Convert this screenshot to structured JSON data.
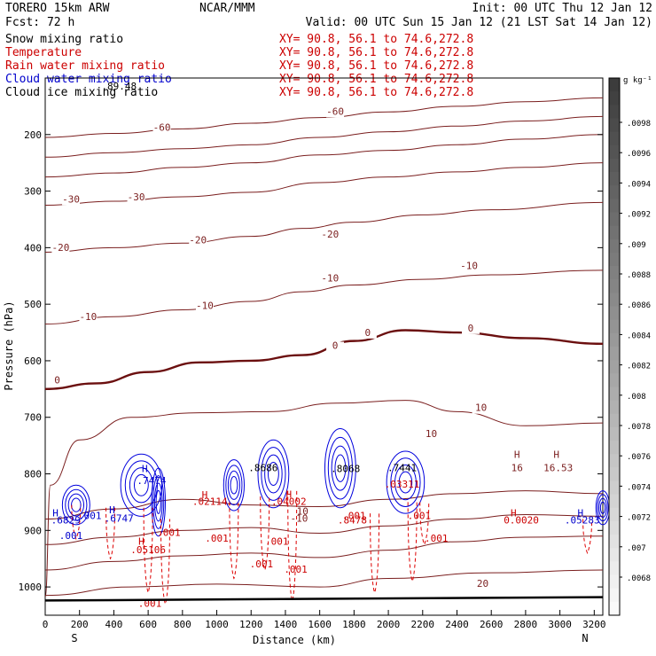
{
  "header": {
    "model": "TORERO  15km ARW",
    "center": "NCAR/MMM",
    "init": "Init: 00 UTC Thu 12 Jan 12",
    "fcst": "Fcst:   72 h",
    "valid": "Valid: 00 UTC Sun 15 Jan 12 (21 LST Sat 14 Jan 12)"
  },
  "fields": [
    {
      "name": "Snow mixing ratio",
      "xy": "XY=  90.8, 56.1 to  74.6,272.8",
      "color": "#000000"
    },
    {
      "name": "Temperature",
      "xy": "XY=  90.8, 56.1 to  74.6,272.8",
      "color": "#cc0000"
    },
    {
      "name": "Rain water mixing ratio",
      "xy": "XY=  90.8, 56.1 to  74.6,272.8",
      "color": "#cc0000"
    },
    {
      "name": "Cloud water mixing ratio",
      "xy": "XY=  90.8, 56.1 to  74.6,272.8",
      "color": "#0000cc"
    },
    {
      "name": "Cloud ice mixing ratio",
      "xy": "XY=  90.8, 56.1 to  74.6,272.8",
      "color": "#000000"
    }
  ],
  "chart_data": {
    "type": "contour",
    "xlabel": "Distance (km)",
    "ylabel": "Pressure (hPa)",
    "xlim": [
      0,
      3250
    ],
    "ylim": [
      1050,
      100
    ],
    "x_ticks": [
      0,
      200,
      400,
      600,
      800,
      1000,
      1200,
      1400,
      1600,
      1800,
      2000,
      2200,
      2400,
      2600,
      2800,
      3000,
      3200
    ],
    "y_ticks": [
      200,
      300,
      400,
      500,
      600,
      700,
      800,
      900,
      1000
    ],
    "x_end_labels": {
      "left": "S",
      "right": "N"
    },
    "temperature_contours": [
      {
        "level": -60,
        "label": "-60",
        "points": [
          [
            0,
            205
          ],
          [
            400,
            198
          ],
          [
            800,
            190
          ],
          [
            1200,
            180
          ],
          [
            1600,
            170
          ],
          [
            2000,
            160
          ],
          [
            2400,
            150
          ],
          [
            2800,
            142
          ],
          [
            3250,
            135
          ]
        ],
        "label_positions": [
          [
            680,
            193
          ],
          [
            1690,
            165
          ]
        ]
      },
      {
        "level": -50,
        "label": "",
        "points": [
          [
            0,
            240
          ],
          [
            400,
            232
          ],
          [
            800,
            225
          ],
          [
            1200,
            218
          ],
          [
            1600,
            205
          ],
          [
            2000,
            195
          ],
          [
            2400,
            185
          ],
          [
            2800,
            176
          ],
          [
            3250,
            168
          ]
        ],
        "label_positions": []
      },
      {
        "level": -40,
        "label": "",
        "points": [
          [
            0,
            275
          ],
          [
            400,
            268
          ],
          [
            800,
            258
          ],
          [
            1200,
            250
          ],
          [
            1600,
            236
          ],
          [
            2000,
            228
          ],
          [
            2400,
            218
          ],
          [
            2800,
            208
          ],
          [
            3250,
            200
          ]
        ],
        "label_positions": []
      },
      {
        "level": -30,
        "label": "-30",
        "points": [
          [
            0,
            325
          ],
          [
            400,
            318
          ],
          [
            800,
            310
          ],
          [
            1200,
            302
          ],
          [
            1600,
            285
          ],
          [
            2000,
            275
          ],
          [
            2400,
            266
          ],
          [
            2800,
            258
          ],
          [
            3250,
            250
          ]
        ],
        "label_positions": [
          [
            150,
            320
          ],
          [
            530,
            316
          ]
        ]
      },
      {
        "level": -20,
        "label": "-20",
        "points": [
          [
            0,
            408
          ],
          [
            400,
            400
          ],
          [
            800,
            392
          ],
          [
            1200,
            380
          ],
          [
            1500,
            366
          ],
          [
            1800,
            355
          ],
          [
            2200,
            342
          ],
          [
            2600,
            333
          ],
          [
            3250,
            320
          ]
        ],
        "label_positions": [
          [
            90,
            406
          ],
          [
            890,
            392
          ],
          [
            1660,
            382
          ]
        ]
      },
      {
        "level": -10,
        "label": "-10",
        "points": [
          [
            0,
            535
          ],
          [
            400,
            522
          ],
          [
            800,
            510
          ],
          [
            1200,
            495
          ],
          [
            1500,
            478
          ],
          [
            1800,
            466
          ],
          [
            2200,
            456
          ],
          [
            2600,
            448
          ],
          [
            3250,
            440
          ]
        ],
        "label_positions": [
          [
            250,
            528
          ],
          [
            930,
            508
          ],
          [
            1660,
            460
          ],
          [
            2470,
            438
          ]
        ]
      },
      {
        "level": 0,
        "label": "0",
        "points": [
          [
            0,
            650
          ],
          [
            300,
            640
          ],
          [
            600,
            620
          ],
          [
            900,
            603
          ],
          [
            1200,
            600
          ],
          [
            1500,
            590
          ],
          [
            1800,
            565
          ],
          [
            2100,
            546
          ],
          [
            2400,
            550
          ],
          [
            2800,
            560
          ],
          [
            3250,
            570
          ]
        ],
        "label_positions": [
          [
            70,
            640
          ],
          [
            1690,
            579
          ],
          [
            1880,
            556
          ],
          [
            2480,
            548
          ]
        ]
      },
      {
        "level": 10,
        "label": "10",
        "points": [
          [
            0,
            1018
          ],
          [
            30,
            820
          ],
          [
            200,
            740
          ],
          [
            500,
            700
          ],
          [
            900,
            692
          ],
          [
            1300,
            690
          ],
          [
            1700,
            675
          ],
          [
            2100,
            670
          ],
          [
            2400,
            690
          ],
          [
            2800,
            715
          ],
          [
            3250,
            710
          ]
        ],
        "label_positions": [
          [
            2540,
            689
          ],
          [
            1500,
            872
          ]
        ]
      },
      {
        "level": 14,
        "label": "",
        "points": [
          [
            0,
            880
          ],
          [
            400,
            862
          ],
          [
            800,
            845
          ],
          [
            1200,
            855
          ],
          [
            1600,
            858
          ],
          [
            2000,
            845
          ],
          [
            2400,
            835
          ],
          [
            2800,
            830
          ],
          [
            3250,
            835
          ]
        ],
        "label_positions": []
      },
      {
        "level": 16,
        "label": "",
        "points": [
          [
            0,
            925
          ],
          [
            400,
            912
          ],
          [
            800,
            900
          ],
          [
            1200,
            895
          ],
          [
            1600,
            905
          ],
          [
            2000,
            892
          ],
          [
            2400,
            880
          ],
          [
            2800,
            872
          ],
          [
            3250,
            875
          ]
        ],
        "label_positions": []
      },
      {
        "level": 18,
        "label": "",
        "points": [
          [
            0,
            970
          ],
          [
            400,
            955
          ],
          [
            800,
            945
          ],
          [
            1200,
            940
          ],
          [
            1600,
            948
          ],
          [
            2000,
            935
          ],
          [
            2400,
            920
          ],
          [
            2800,
            912
          ],
          [
            3250,
            910
          ]
        ],
        "label_positions": []
      },
      {
        "level": 20,
        "label": "20",
        "points": [
          [
            0,
            1015
          ],
          [
            500,
            1000
          ],
          [
            1000,
            995
          ],
          [
            1600,
            1000
          ],
          [
            2000,
            985
          ],
          [
            2600,
            975
          ],
          [
            3250,
            970
          ]
        ],
        "label_positions": [
          [
            2550,
            1000
          ]
        ]
      }
    ],
    "cloud_water_blobs": [
      {
        "x": 180,
        "p": 855,
        "rx": 80,
        "rp": 35
      },
      {
        "x": 560,
        "p": 820,
        "rx": 120,
        "rp": 55
      },
      {
        "x": 660,
        "p": 850,
        "rx": 40,
        "rp": 60
      },
      {
        "x": 1100,
        "p": 820,
        "rx": 60,
        "rp": 45
      },
      {
        "x": 1330,
        "p": 800,
        "rx": 90,
        "rp": 60
      },
      {
        "x": 1720,
        "p": 790,
        "rx": 90,
        "rp": 70
      },
      {
        "x": 2100,
        "p": 815,
        "rx": 110,
        "rp": 55
      },
      {
        "x": 3250,
        "p": 860,
        "rx": 40,
        "rp": 30
      }
    ],
    "rain_water_contours": [
      {
        "x": 180,
        "p_top": 855,
        "p_bottom": 915
      },
      {
        "x": 380,
        "p_top": 860,
        "p_bottom": 950
      },
      {
        "x": 600,
        "p_top": 860,
        "p_bottom": 1010
      },
      {
        "x": 700,
        "p_top": 880,
        "p_bottom": 1030
      },
      {
        "x": 1100,
        "p_top": 850,
        "p_bottom": 985
      },
      {
        "x": 1280,
        "p_top": 840,
        "p_bottom": 970
      },
      {
        "x": 1440,
        "p_top": 830,
        "p_bottom": 1025
      },
      {
        "x": 1920,
        "p_top": 870,
        "p_bottom": 1010
      },
      {
        "x": 2140,
        "p_top": 850,
        "p_bottom": 990
      },
      {
        "x": 2210,
        "p_top": 850,
        "p_bottom": 925
      },
      {
        "x": 3160,
        "p_top": 880,
        "p_bottom": 940
      }
    ],
    "annotations": [
      {
        "text": "H",
        "x": 60,
        "p": 875,
        "color": "#0000cc"
      },
      {
        "text": ".6829",
        "x": 120,
        "p": 888,
        "color": "#0000cc"
      },
      {
        "text": "H",
        "x": 390,
        "p": 870,
        "color": "#0000cc"
      },
      {
        "text": ".6747",
        "x": 430,
        "p": 885,
        "color": "#0000cc"
      },
      {
        "text": "H",
        "x": 580,
        "p": 797,
        "color": "#0000cc"
      },
      {
        "text": ".7474",
        "x": 620,
        "p": 818,
        "color": "#0000cc"
      },
      {
        "text": "H",
        "x": 930,
        "p": 843,
        "color": "#cc0000"
      },
      {
        "text": ".02114",
        "x": 960,
        "p": 855,
        "color": "#cc0000"
      },
      {
        "text": ".8686",
        "x": 1270,
        "p": 795,
        "color": "#000000"
      },
      {
        "text": "H",
        "x": 1420,
        "p": 842,
        "color": "#cc0000"
      },
      {
        "text": ".04002",
        "x": 1420,
        "p": 855,
        "color": "#cc0000"
      },
      {
        "text": ".8068",
        "x": 1750,
        "p": 797,
        "color": "#000000"
      },
      {
        "text": ".8478",
        "x": 1790,
        "p": 888,
        "color": "#cc0000"
      },
      {
        "text": ".7441",
        "x": 2080,
        "p": 795,
        "color": "#000000"
      },
      {
        "text": ".03311",
        "x": 2080,
        "p": 824,
        "color": "#cc0000"
      },
      {
        "text": "H",
        "x": 2750,
        "p": 772,
        "color": "#7a1e1e"
      },
      {
        "text": "16",
        "x": 2750,
        "p": 795,
        "color": "#7a1e1e"
      },
      {
        "text": "H",
        "x": 2980,
        "p": 772,
        "color": "#7a1e1e"
      },
      {
        "text": "16.53",
        "x": 2990,
        "p": 795,
        "color": "#7a1e1e"
      },
      {
        "text": "H",
        "x": 2730,
        "p": 875,
        "color": "#cc0000"
      },
      {
        "text": "0.0020",
        "x": 2775,
        "p": 888,
        "color": "#cc0000"
      },
      {
        "text": "H",
        "x": 3120,
        "p": 875,
        "color": "#0000cc"
      },
      {
        "text": ".05283",
        "x": 3130,
        "p": 888,
        "color": "#0000cc"
      },
      {
        "text": "-10",
        "x": 1480,
        "p": 885,
        "color": "#7a1e1e"
      },
      {
        "text": "10",
        "x": 2250,
        "p": 735,
        "color": "#7a1e1e"
      },
      {
        "text": ".001",
        "x": 720,
        "p": 910,
        "color": "#cc0000"
      },
      {
        "text": ".001",
        "x": 1000,
        "p": 920,
        "color": "#cc0000"
      },
      {
        "text": ".001",
        "x": 1350,
        "p": 925,
        "color": "#cc0000"
      },
      {
        "text": ".001",
        "x": 1260,
        "p": 965,
        "color": "#cc0000"
      },
      {
        "text": ".001",
        "x": 1460,
        "p": 975,
        "color": "#cc0000"
      },
      {
        "text": ".001",
        "x": 1800,
        "p": 880,
        "color": "#cc0000"
      },
      {
        "text": ".001",
        "x": 2180,
        "p": 880,
        "color": "#cc0000"
      },
      {
        "text": ".001",
        "x": 2280,
        "p": 920,
        "color": "#cc0000"
      },
      {
        "text": ".001",
        "x": 610,
        "p": 1035,
        "color": "#cc0000"
      },
      {
        "text": ".001",
        "x": 150,
        "p": 915,
        "color": "#0000cc"
      },
      {
        "text": ".001",
        "x": 260,
        "p": 880,
        "color": "#0000cc"
      },
      {
        "text": "H",
        "x": 560,
        "p": 925,
        "color": "#cc0000"
      },
      {
        "text": ".05106",
        "x": 600,
        "p": 940,
        "color": "#cc0000"
      },
      {
        "text": ".89.48",
        "x": 430,
        "p": 120,
        "color": "#000000"
      }
    ],
    "colorbar": {
      "unit": "g kg⁻¹",
      "labels": [
        ".0098",
        ".0096",
        ".0094",
        ".0092",
        ".009",
        ".0088",
        ".0086",
        ".0084",
        ".0082",
        ".008",
        ".0078",
        ".0076",
        ".0074",
        ".0072",
        ".007",
        ".0068"
      ]
    }
  }
}
